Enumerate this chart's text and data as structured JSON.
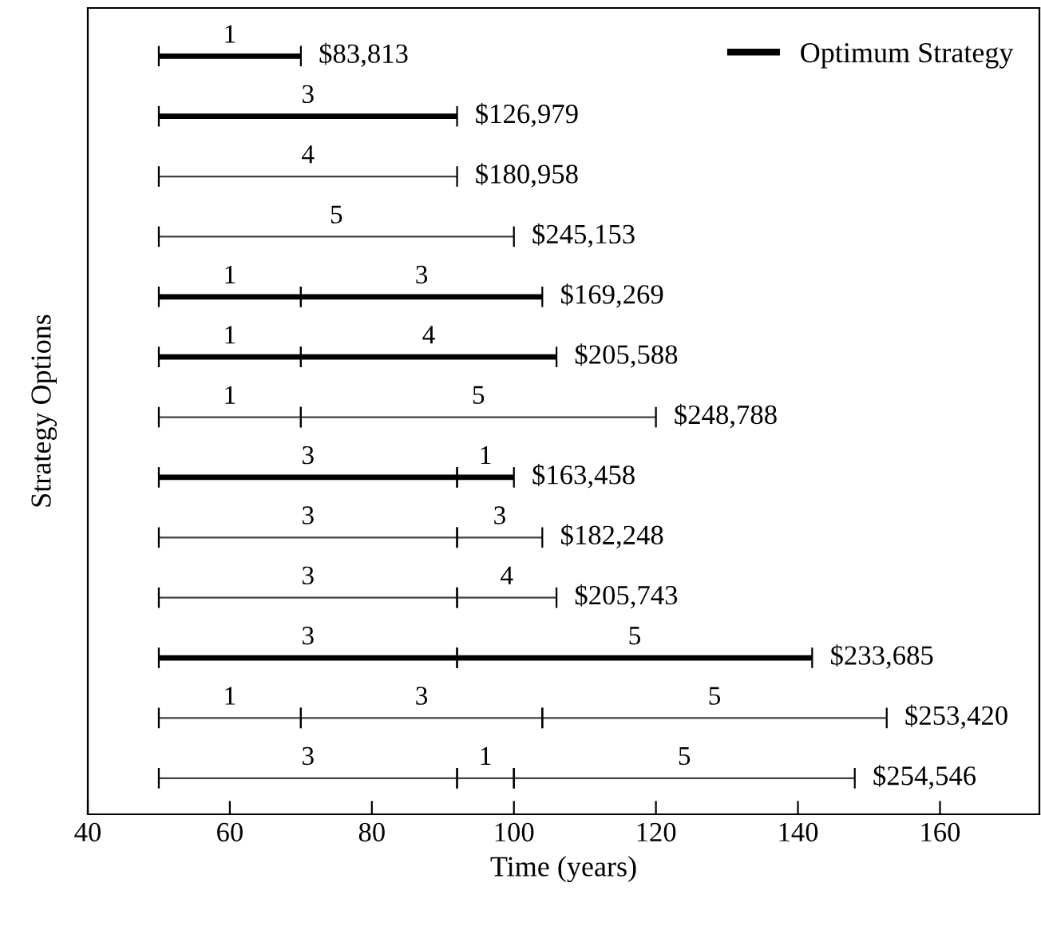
{
  "chart_data": {
    "type": "bar",
    "orientation": "horizontal",
    "categories": [
      null,
      null,
      null,
      null,
      null,
      null,
      null,
      null,
      null,
      null,
      null,
      null,
      null
    ],
    "series": [
      {
        "name": "Optimum Strategy",
        "color": "#000000",
        "base": [
          50,
          50,
          null,
          null,
          50,
          50,
          null,
          50,
          null,
          null,
          50,
          null,
          null
        ],
        "values": [
          20,
          42,
          null,
          null,
          20,
          20,
          null,
          42,
          null,
          null,
          42,
          null,
          null
        ]
      },
      {
        "color": "#000000",
        "base": [
          null,
          null,
          null,
          null,
          70,
          70,
          null,
          92,
          null,
          null,
          92,
          null,
          null
        ],
        "values": [
          null,
          null,
          null,
          null,
          34,
          36,
          null,
          8,
          null,
          null,
          50,
          null,
          null
        ]
      },
      {
        "color": "#404040",
        "base": [
          null,
          null,
          50,
          50,
          null,
          null,
          50,
          null,
          50,
          50,
          null,
          50,
          50
        ],
        "values": [
          null,
          null,
          42,
          50,
          null,
          null,
          20,
          null,
          42,
          42,
          null,
          20,
          42
        ]
      },
      {
        "color": "#404040",
        "base": [
          null,
          null,
          null,
          null,
          null,
          null,
          70,
          null,
          92,
          92,
          null,
          70,
          92
        ],
        "values": [
          null,
          null,
          null,
          null,
          null,
          null,
          50,
          null,
          12,
          14,
          null,
          34,
          8
        ]
      },
      {
        "color": "#404040",
        "base": [
          null,
          null,
          null,
          null,
          null,
          null,
          null,
          null,
          null,
          null,
          null,
          104,
          100
        ],
        "values": [
          null,
          null,
          null,
          null,
          null,
          null,
          null,
          null,
          null,
          null,
          null,
          48.5,
          48
        ]
      }
    ],
    "annotations": [
      "1",
      "$83,813",
      "3",
      "$126,979",
      "4",
      "$180,958",
      "5",
      "$245,153",
      "1",
      "3",
      "$169,269",
      "1",
      "4",
      "$205,588",
      "1",
      "5",
      "$248,788",
      "3",
      "1",
      "$163,458",
      "3",
      "3",
      "$182,248",
      "3",
      "4",
      "$205,743",
      "3",
      "5",
      "$233,685",
      "1",
      "3",
      "5",
      "$253,420",
      "3",
      "1",
      "5",
      "$254,546"
    ],
    "xlim": [
      40,
      174
    ],
    "xticks": [
      40,
      60,
      80,
      100,
      120,
      140,
      160
    ],
    "xlabel": "Time (years)",
    "ylabel": "Strategy Options",
    "tick_labels": "x",
    "legend": "top right",
    "grid": false
  }
}
